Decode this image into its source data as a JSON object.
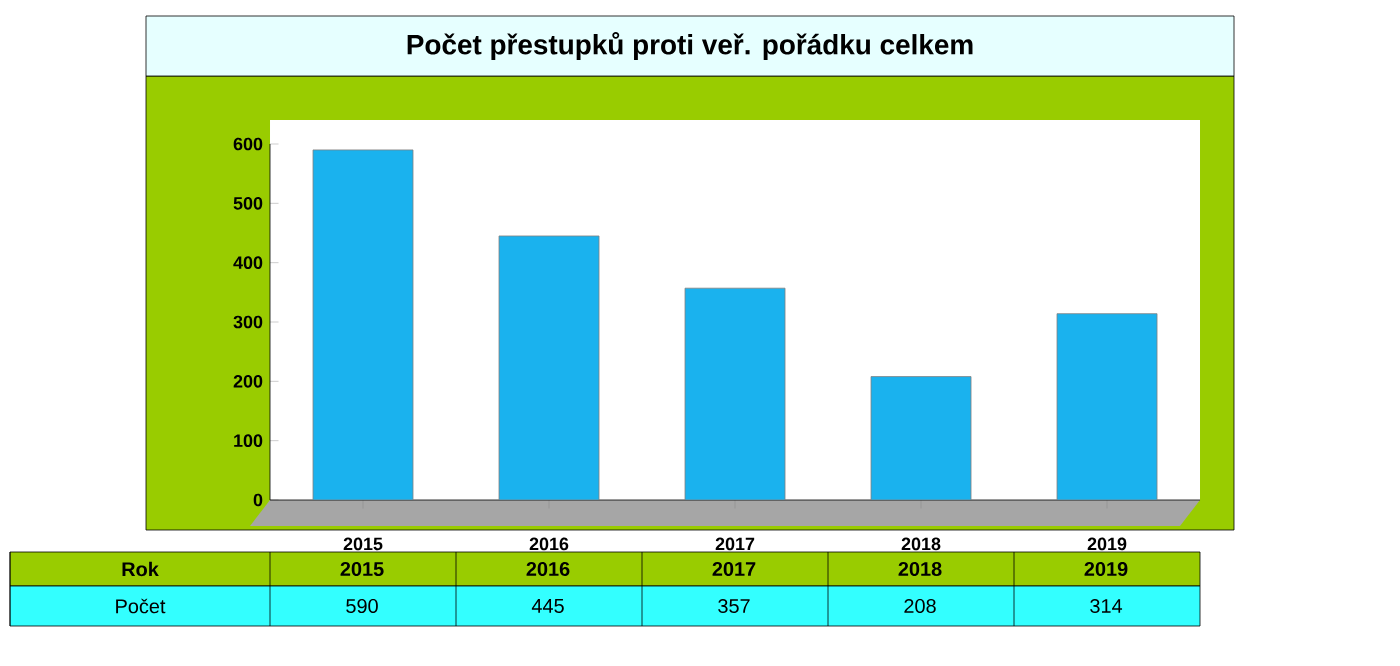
{
  "chart_data": {
    "type": "bar",
    "title": "Počet přestupků proti veř. pořádku celkem",
    "categories": [
      "2015",
      "2016",
      "2017",
      "2018",
      "2019"
    ],
    "values": [
      590,
      445,
      357,
      208,
      314
    ],
    "color": "#1ab2ee",
    "ylim": [
      0,
      600
    ],
    "yticks": [
      0,
      100,
      200,
      300,
      400,
      500,
      600
    ],
    "data_labels": true,
    "annotations": [
      "Rok",
      "Počet"
    ]
  }
}
